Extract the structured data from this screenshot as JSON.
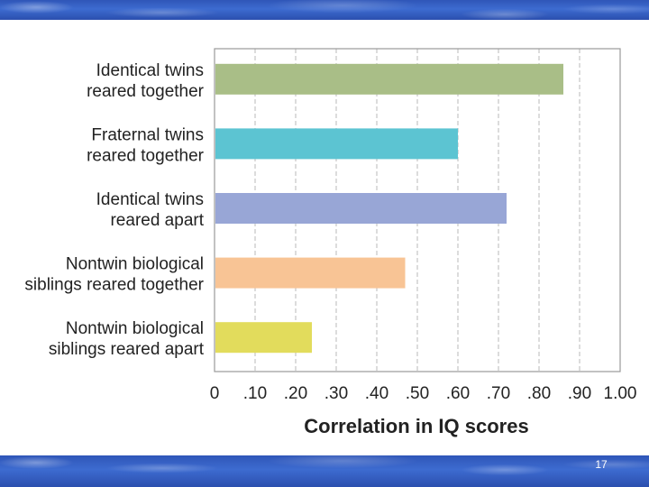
{
  "slide": {
    "number": "17"
  },
  "chart_data": {
    "type": "bar",
    "orientation": "horizontal",
    "categories": [
      [
        "Identical twins",
        "reared together"
      ],
      [
        "Fraternal twins",
        "reared together"
      ],
      [
        "Identical twins",
        "reared apart"
      ],
      [
        "Nontwin biological",
        "siblings reared together"
      ],
      [
        "Nontwin biological",
        "siblings reared apart"
      ]
    ],
    "values": [
      0.86,
      0.6,
      0.72,
      0.47,
      0.24
    ],
    "colors": [
      "#a9be87",
      "#5cc4d2",
      "#98a6d6",
      "#f8c495",
      "#e2dc5c"
    ],
    "xlim": [
      0,
      1.0
    ],
    "tick_labels": [
      "0",
      ".10",
      ".20",
      ".30",
      ".40",
      ".50",
      ".60",
      ".70",
      ".80",
      ".90",
      "1.00"
    ],
    "xlabel": "Correlation in IQ scores",
    "grid": "vertical dashed"
  }
}
